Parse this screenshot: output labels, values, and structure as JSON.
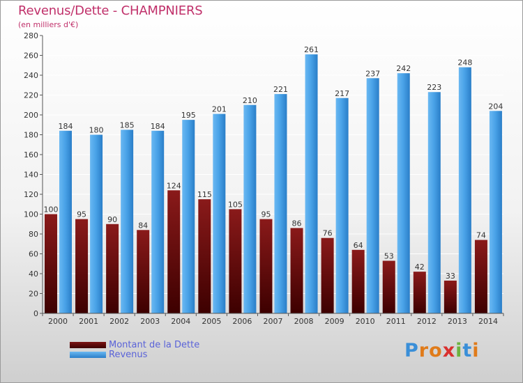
{
  "title": "Revenus/Dette - CHAMPNIERS",
  "subtitle": "(en milliers d'€)",
  "colors": {
    "title": "#c0306a",
    "dette_top": "#7a1414",
    "dette_bottom": "#4a0000",
    "revenus_light": "#5fb0ee",
    "revenus_dark": "#2d82cc"
  },
  "legend": [
    {
      "label": "Montant de la Dette",
      "color": "#6a0f0f"
    },
    {
      "label": "Revenus",
      "color": "#3f97df"
    }
  ],
  "logo": {
    "letters": [
      "P",
      "r",
      "o",
      "x",
      "i",
      "t",
      "i"
    ],
    "colors": [
      "#3a8fd8",
      "#e07b1a",
      "#e07b1a",
      "#d9302f",
      "#6db33f",
      "#3a8fd8",
      "#e07b1a"
    ]
  },
  "chart_data": {
    "type": "bar",
    "title": "Revenus/Dette - CHAMPNIERS",
    "ylabel": "(en milliers d'€)",
    "ylim": [
      0,
      280
    ],
    "yticks": [
      0,
      20,
      40,
      60,
      80,
      100,
      120,
      140,
      160,
      180,
      200,
      220,
      240,
      260,
      280
    ],
    "grid": true,
    "categories": [
      "2000",
      "2001",
      "2002",
      "2003",
      "2004",
      "2005",
      "2006",
      "2007",
      "2008",
      "2009",
      "2010",
      "2011",
      "2012",
      "2013",
      "2014"
    ],
    "series": [
      {
        "name": "Montant de la Dette",
        "values": [
          100,
          95,
          90,
          84,
          124,
          115,
          105,
          95,
          86,
          76,
          64,
          53,
          42,
          33,
          74
        ]
      },
      {
        "name": "Revenus",
        "values": [
          184,
          180,
          185,
          184,
          195,
          201,
          210,
          221,
          261,
          217,
          237,
          242,
          223,
          248,
          204
        ]
      }
    ]
  }
}
